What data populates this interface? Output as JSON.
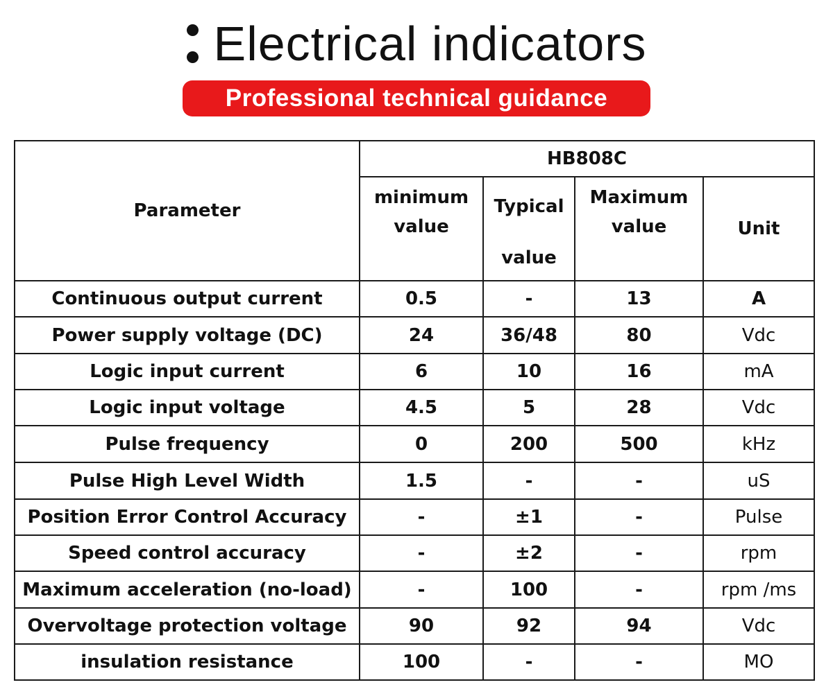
{
  "header": {
    "title": "Electrical indicators",
    "subtitle": "Professional technical guidance"
  },
  "table": {
    "parameter_label": "Parameter",
    "model": "HB808C",
    "col_min": [
      "minimum",
      "value"
    ],
    "col_typ": [
      "Typical",
      "value"
    ],
    "col_max": [
      "Maximum",
      "value"
    ],
    "col_unit": "Unit",
    "rows": [
      {
        "param": "Continuous output current",
        "min": "0.5",
        "typ": "-",
        "max": "13",
        "unit": "A"
      },
      {
        "param": "Power supply voltage (DC)",
        "min": "24",
        "typ": "36/48",
        "max": "80",
        "unit": "Vdc"
      },
      {
        "param": "Logic input current",
        "min": "6",
        "typ": "10",
        "max": "16",
        "unit": "mA"
      },
      {
        "param": "Logic input voltage",
        "min": "4.5",
        "typ": "5",
        "max": "28",
        "unit": "Vdc"
      },
      {
        "param": "Pulse frequency",
        "min": "0",
        "typ": "200",
        "max": "500",
        "unit": "kHz"
      },
      {
        "param": "Pulse High Level Width",
        "min": "1.5",
        "typ": "-",
        "max": "-",
        "unit": "uS"
      },
      {
        "param": "Position Error Control Accuracy",
        "min": "-",
        "typ": "±1",
        "max": "-",
        "unit": "Pulse"
      },
      {
        "param": "Speed control accuracy",
        "min": "-",
        "typ": "±2",
        "max": "-",
        "unit": "rpm"
      },
      {
        "param": "Maximum acceleration (no-load)",
        "min": "-",
        "typ": "100",
        "max": "-",
        "unit": "rpm /ms"
      },
      {
        "param": "Overvoltage protection voltage",
        "min": "90",
        "typ": "92",
        "max": "94",
        "unit": "Vdc"
      },
      {
        "param": "insulation resistance",
        "min": "100",
        "typ": "-",
        "max": "-",
        "unit": "MO"
      }
    ]
  }
}
